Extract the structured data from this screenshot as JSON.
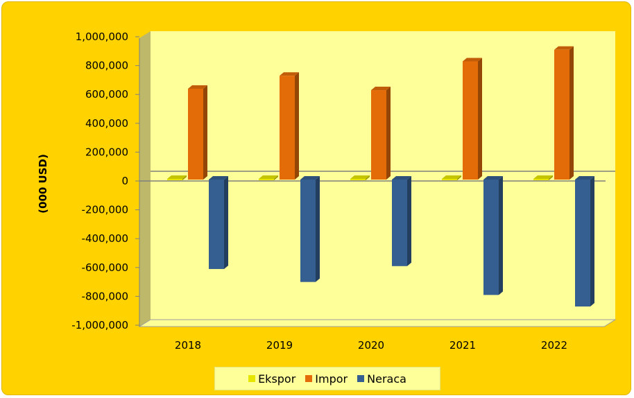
{
  "chart_data": {
    "type": "bar",
    "categories": [
      "2018",
      "2019",
      "2020",
      "2021",
      "2022"
    ],
    "series": [
      {
        "name": "Ekspor",
        "values": [
          5000,
          5000,
          5000,
          5000,
          5000
        ],
        "color": "#E6E600"
      },
      {
        "name": "Impor",
        "values": [
          630000,
          720000,
          620000,
          820000,
          900000
        ],
        "color": "#E36C09"
      },
      {
        "name": "Neraca",
        "values": [
          -620000,
          -710000,
          -600000,
          -800000,
          -880000
        ],
        "color": "#365F91"
      }
    ],
    "ylabel": "(000 USD)",
    "ylim": [
      -1000000,
      1000000
    ],
    "yticks": [
      "1,000,000",
      "800,000",
      "600,000",
      "400,000",
      "200,000",
      "0",
      "-200,000",
      "-400,000",
      "-600,000",
      "-800,000",
      "-1,000,000"
    ],
    "ytick_values": [
      1000000,
      800000,
      600000,
      400000,
      200000,
      0,
      -200000,
      -400000,
      -600000,
      -800000,
      -1000000
    ],
    "grid": false,
    "legend_position": "bottom",
    "plot_background": "#FFFF99",
    "card_background": "#FFD200",
    "style": "3d-column"
  }
}
